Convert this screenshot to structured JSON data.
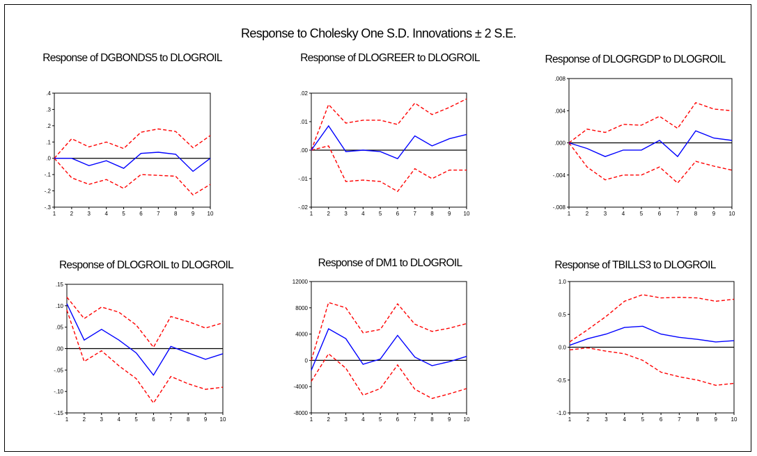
{
  "title": "Response to Cholesky One S.D. Innovations ± 2 S.E.",
  "chart_data": [
    {
      "type": "line",
      "title": "Response of DGBONDS5 to DLOGROIL",
      "x": [
        1,
        2,
        3,
        4,
        5,
        6,
        7,
        8,
        9,
        10
      ],
      "ylim": [
        -0.3,
        0.4
      ],
      "yticks": [
        -0.3,
        -0.2,
        -0.1,
        0,
        0.1,
        0.2,
        0.3,
        0.4
      ],
      "yticklabels": [
        "-.3",
        "-.2",
        "-.1",
        ".0",
        ".1",
        ".2",
        ".3",
        ".4"
      ],
      "series": [
        {
          "values": [
            0,
            0,
            -0.045,
            -0.015,
            -0.062,
            0.03,
            0.037,
            0.025,
            -0.08,
            0
          ],
          "color": "#0000ff",
          "style": "solid"
        },
        {
          "values": [
            0,
            0.12,
            0.07,
            0.1,
            0.06,
            0.16,
            0.18,
            0.165,
            0.065,
            0.14
          ],
          "color": "#ff0000",
          "style": "dashed"
        },
        {
          "values": [
            0,
            -0.12,
            -0.16,
            -0.13,
            -0.185,
            -0.1,
            -0.105,
            -0.11,
            -0.225,
            -0.16
          ],
          "color": "#ff0000",
          "style": "dashed"
        }
      ]
    },
    {
      "type": "line",
      "title": "Response of DLOGREER to DLOGROIL",
      "x": [
        1,
        2,
        3,
        4,
        5,
        6,
        7,
        8,
        9,
        10
      ],
      "ylim": [
        -0.02,
        0.02
      ],
      "yticks": [
        -0.02,
        -0.01,
        0,
        0.01,
        0.02
      ],
      "yticklabels": [
        "-.02",
        "-.01",
        ".00",
        ".01",
        ".02"
      ],
      "series": [
        {
          "values": [
            0,
            0.0085,
            -0.0005,
            0,
            -0.0005,
            -0.003,
            0.005,
            0.0015,
            0.004,
            0.0055
          ],
          "color": "#0000ff",
          "style": "solid"
        },
        {
          "values": [
            0,
            0.016,
            0.0095,
            0.0105,
            0.0105,
            0.009,
            0.0165,
            0.0125,
            0.015,
            0.018
          ],
          "color": "#ff0000",
          "style": "dashed"
        },
        {
          "values": [
            0,
            0.0015,
            -0.011,
            -0.0105,
            -0.011,
            -0.0145,
            -0.0065,
            -0.01,
            -0.007,
            -0.007
          ],
          "color": "#ff0000",
          "style": "dashed"
        }
      ]
    },
    {
      "type": "line",
      "title": "Response of DLOGRGDP to DLOGROIL",
      "x": [
        1,
        2,
        3,
        4,
        5,
        6,
        7,
        8,
        9,
        10
      ],
      "ylim": [
        -0.008,
        0.008
      ],
      "yticks": [
        -0.008,
        -0.004,
        0,
        0.004,
        0.008
      ],
      "yticklabels": [
        "-.008",
        "-.004",
        ".000",
        ".004",
        ".008"
      ],
      "series": [
        {
          "values": [
            0,
            -0.0007,
            -0.0017,
            -0.0009,
            -0.0009,
            0.0003,
            -0.0017,
            0.0015,
            0.0006,
            0.0003
          ],
          "color": "#0000ff",
          "style": "solid"
        },
        {
          "values": [
            0,
            0.0017,
            0.0013,
            0.0023,
            0.0022,
            0.0033,
            0.0018,
            0.005,
            0.0042,
            0.004
          ],
          "color": "#ff0000",
          "style": "dashed"
        },
        {
          "values": [
            0,
            -0.003,
            -0.0046,
            -0.004,
            -0.004,
            -0.003,
            -0.005,
            -0.0023,
            -0.0029,
            -0.0034
          ],
          "color": "#ff0000",
          "style": "dashed"
        }
      ]
    },
    {
      "type": "line",
      "title": "Response of DLOGROIL to DLOGROIL",
      "x": [
        1,
        2,
        3,
        4,
        5,
        6,
        7,
        8,
        9,
        10
      ],
      "ylim": [
        -0.15,
        0.15
      ],
      "yticks": [
        -0.15,
        -0.1,
        -0.05,
        0,
        0.05,
        0.1,
        0.15
      ],
      "yticklabels": [
        "-.15",
        "-.10",
        "-.05",
        ".00",
        ".05",
        ".10",
        ".15"
      ],
      "series": [
        {
          "values": [
            0.105,
            0.02,
            0.045,
            0.02,
            -0.01,
            -0.062,
            0.005,
            -0.01,
            -0.025,
            -0.012
          ],
          "color": "#0000ff",
          "style": "solid"
        },
        {
          "values": [
            0.12,
            0.07,
            0.097,
            0.085,
            0.055,
            0.003,
            0.075,
            0.063,
            0.048,
            0.06
          ],
          "color": "#ff0000",
          "style": "dashed"
        },
        {
          "values": [
            0.09,
            -0.03,
            -0.005,
            -0.04,
            -0.07,
            -0.127,
            -0.065,
            -0.082,
            -0.095,
            -0.09
          ],
          "color": "#ff0000",
          "style": "dashed"
        }
      ]
    },
    {
      "type": "line",
      "title": "Response of DM1 to DLOGROIL",
      "x": [
        1,
        2,
        3,
        4,
        5,
        6,
        7,
        8,
        9,
        10
      ],
      "ylim": [
        -8000,
        12000
      ],
      "yticks": [
        -8000,
        -4000,
        0,
        4000,
        8000,
        12000
      ],
      "yticklabels": [
        "-8000",
        "-4000",
        "0",
        "4000",
        "8000",
        "12000"
      ],
      "series": [
        {
          "values": [
            -1500,
            4800,
            3300,
            -600,
            200,
            3800,
            500,
            -800,
            -200,
            600
          ],
          "color": "#0000ff",
          "style": "solid"
        },
        {
          "values": [
            0,
            8800,
            8000,
            4200,
            4700,
            8600,
            5500,
            4400,
            4900,
            5600
          ],
          "color": "#ff0000",
          "style": "dashed"
        },
        {
          "values": [
            -3200,
            1000,
            -1200,
            -5300,
            -4300,
            -700,
            -4400,
            -5800,
            -5100,
            -4300
          ],
          "color": "#ff0000",
          "style": "dashed"
        }
      ]
    },
    {
      "type": "line",
      "title": "Response of TBILLS3 to DLOGROIL",
      "x": [
        1,
        2,
        3,
        4,
        5,
        6,
        7,
        8,
        9,
        10
      ],
      "ylim": [
        -1.0,
        1.0
      ],
      "yticks": [
        -1.0,
        -0.5,
        0,
        0.5,
        1.0
      ],
      "yticklabels": [
        "-1.0",
        "-0.5",
        "0.0",
        "0.5",
        "1.0"
      ],
      "series": [
        {
          "values": [
            0.03,
            0.13,
            0.2,
            0.3,
            0.32,
            0.2,
            0.15,
            0.12,
            0.08,
            0.1
          ],
          "color": "#0000ff",
          "style": "solid"
        },
        {
          "values": [
            0.08,
            0.27,
            0.47,
            0.7,
            0.8,
            0.75,
            0.76,
            0.75,
            0.7,
            0.73
          ],
          "color": "#ff0000",
          "style": "dashed"
        },
        {
          "values": [
            -0.04,
            -0.01,
            -0.06,
            -0.1,
            -0.2,
            -0.38,
            -0.45,
            -0.5,
            -0.58,
            -0.55
          ],
          "color": "#ff0000",
          "style": "dashed"
        }
      ]
    }
  ]
}
